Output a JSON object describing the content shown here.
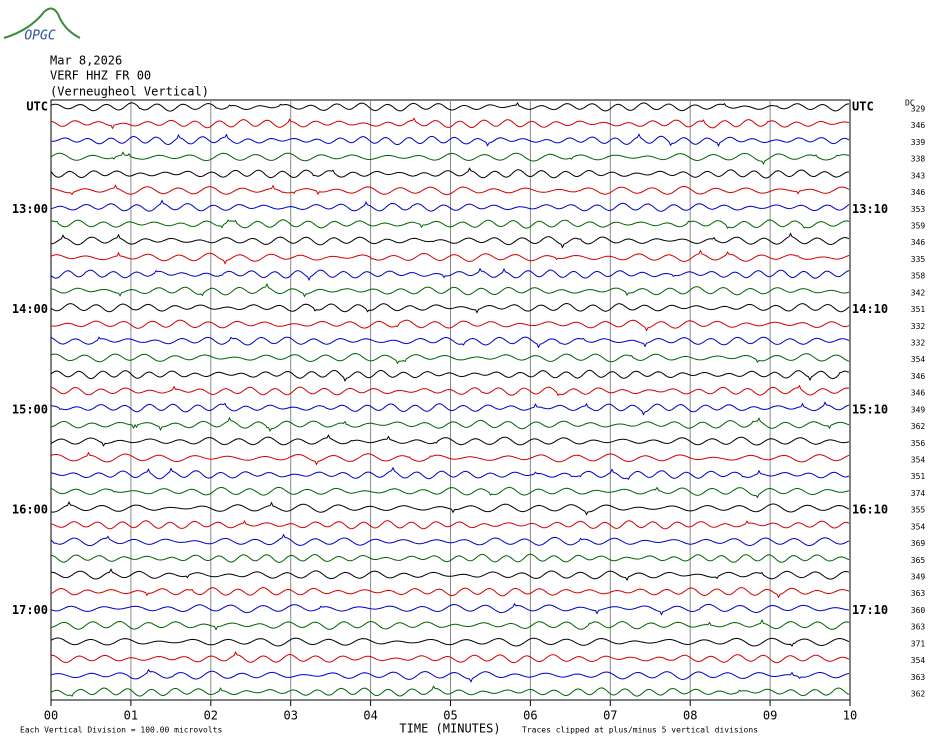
{
  "header": {
    "logo": "OPGC",
    "date": "Mar 8,2026",
    "station": "VERF HHZ FR 00",
    "location": "(Verneugheol Vertical)",
    "dc_label": "DC"
  },
  "trace_colors": [
    "#000000",
    "#d40000",
    "#0000c8",
    "#006400"
  ],
  "left_labels": [
    "UTC",
    null,
    null,
    null,
    null,
    null,
    "13:00",
    null,
    null,
    null,
    null,
    null,
    "14:00",
    null,
    null,
    null,
    null,
    null,
    "15:00",
    null,
    null,
    null,
    null,
    null,
    "16:00",
    null,
    null,
    null,
    null,
    null,
    "17:00",
    null,
    null,
    null,
    null,
    null
  ],
  "right_labels": [
    "UTC",
    null,
    null,
    null,
    null,
    null,
    "13:10",
    null,
    null,
    null,
    null,
    null,
    "14:10",
    null,
    null,
    null,
    null,
    null,
    "15:10",
    null,
    null,
    null,
    null,
    null,
    "16:10",
    null,
    null,
    null,
    null,
    null,
    "17:10",
    null,
    null,
    null,
    null,
    null
  ],
  "dc_values": [
    329,
    346,
    339,
    338,
    343,
    346,
    353,
    359,
    346,
    335,
    358,
    342,
    351,
    332,
    332,
    354,
    346,
    346,
    349,
    362,
    356,
    354,
    351,
    374,
    355,
    354,
    369,
    365,
    349,
    363,
    360,
    363,
    371,
    354,
    363,
    362
  ],
  "x_axis": {
    "label": "TIME (MINUTES)",
    "ticks": [
      "00",
      "01",
      "02",
      "03",
      "04",
      "05",
      "06",
      "07",
      "08",
      "09",
      "10"
    ]
  },
  "footer": {
    "scale": "Each Vertical Division =  100.00 microvolts",
    "clip": "Traces clipped at plus/minus 5 vertical divisions"
  }
}
